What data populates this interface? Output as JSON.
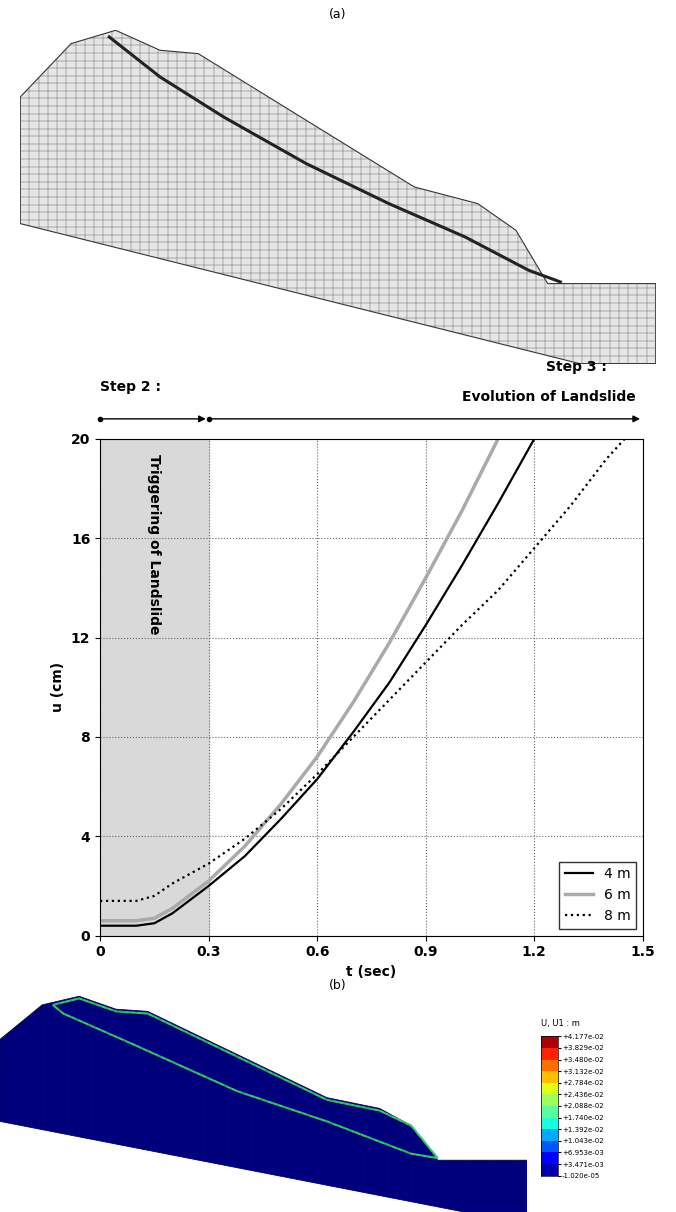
{
  "panel_a": {
    "label": "(a)"
  },
  "chart_data": {
    "type": "line",
    "xlabel": "t (sec)",
    "ylabel": "u (cm)",
    "xlim": [
      0,
      1.5
    ],
    "xticks": [
      0,
      0.3,
      0.6,
      0.9,
      1.2,
      1.5
    ],
    "ylim": [
      0,
      20
    ],
    "yticks": [
      0,
      4,
      8,
      12,
      16,
      20
    ],
    "grid": true,
    "legend": "lower right",
    "shaded": {
      "start": 0,
      "end": 0.3,
      "label": "Triggering of Landslide"
    },
    "steps": [
      {
        "label": "Step 2 :",
        "start": 0,
        "end": 0.3
      },
      {
        "label": "Step 3 :",
        "subtitle": "Evolution of Landslide",
        "start": 0.3,
        "end": 1.5
      }
    ],
    "series": [
      {
        "name": "4 m",
        "color": "#000000",
        "line_style": "solid",
        "x": [
          0,
          0.1,
          0.15,
          0.2,
          0.3,
          0.4,
          0.5,
          0.6,
          0.7,
          0.8,
          0.9,
          1.0,
          1.1,
          1.2
        ],
        "values": [
          0.4,
          0.4,
          0.5,
          0.9,
          2.0,
          3.2,
          4.7,
          6.3,
          8.2,
          10.2,
          12.5,
          14.9,
          17.4,
          20
        ]
      },
      {
        "name": "6 m",
        "color": "#aaaaaa",
        "line_style": "solid",
        "x": [
          0,
          0.1,
          0.15,
          0.2,
          0.3,
          0.4,
          0.5,
          0.6,
          0.7,
          0.8,
          0.9,
          1.0,
          1.1
        ],
        "values": [
          0.6,
          0.6,
          0.7,
          1.1,
          2.2,
          3.6,
          5.3,
          7.2,
          9.4,
          11.8,
          14.4,
          17.1,
          20
        ]
      },
      {
        "name": "8 m",
        "color": "#000000",
        "line_style": "dotted",
        "x": [
          0,
          0.1,
          0.15,
          0.2,
          0.3,
          0.4,
          0.5,
          0.6,
          0.7,
          0.8,
          0.9,
          1.0,
          1.1,
          1.2,
          1.3,
          1.4,
          1.45
        ],
        "values": [
          1.4,
          1.4,
          1.6,
          2.1,
          2.9,
          3.9,
          5.1,
          6.5,
          8.0,
          9.5,
          11.0,
          12.5,
          13.9,
          15.6,
          17.3,
          19.2,
          20
        ]
      }
    ]
  },
  "panel_b": {
    "label": "(b)",
    "colorbar": {
      "title": "U, U1 : m",
      "ticks": [
        {
          "value": 0.04177,
          "label": "+4.177e-02"
        },
        {
          "value": 0.03829,
          "label": "+3.829e-02"
        },
        {
          "value": 0.0348,
          "label": "+3.480e-02"
        },
        {
          "value": 0.03132,
          "label": "+3.132e-02"
        },
        {
          "value": 0.02784,
          "label": "+2.784e-02"
        },
        {
          "value": 0.02436,
          "label": "+2.436e-02"
        },
        {
          "value": 0.02088,
          "label": "+2.088e-02"
        },
        {
          "value": 0.0174,
          "label": "+1.740e-02"
        },
        {
          "value": 0.01392,
          "label": "+1.392e-02"
        },
        {
          "value": 0.01043,
          "label": "+1.043e-02"
        },
        {
          "value": 0.006953,
          "label": "+6.953e-03"
        },
        {
          "value": 0.003471,
          "label": "+3.471e-03"
        },
        {
          "value": -1.02e-05,
          "label": "-1.020e-05"
        }
      ]
    }
  }
}
